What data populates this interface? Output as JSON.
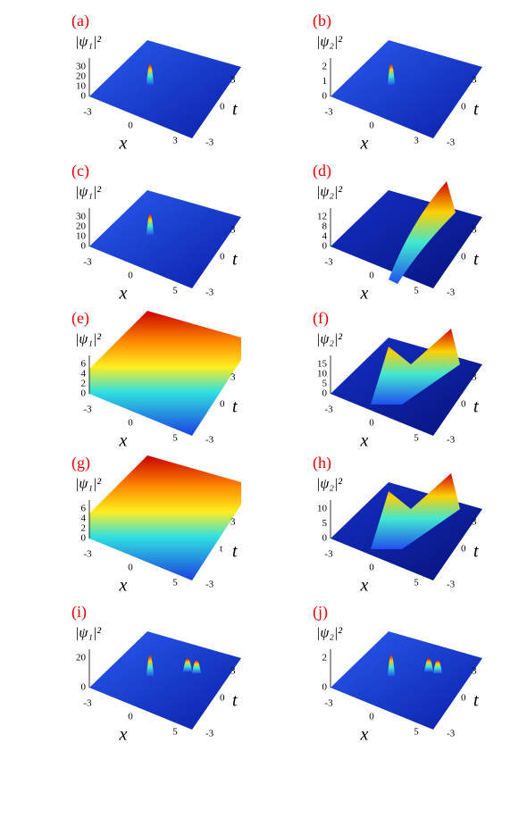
{
  "panels": [
    {
      "label": "(a)",
      "zlabel": "|ψ₁|²",
      "zticks": [
        "0",
        "10",
        "20",
        "30"
      ],
      "xticks": [
        "-3",
        "0",
        "3"
      ],
      "tticks": [
        "3",
        "0",
        "-3"
      ],
      "xlabel": "x",
      "tlabel": "t"
    },
    {
      "label": "(b)",
      "zlabel": "|ψ₂|²",
      "zticks": [
        "0",
        "1",
        "2"
      ],
      "xticks": [
        "-3",
        "0",
        "3"
      ],
      "tticks": [
        "3",
        "0",
        "-3"
      ],
      "xlabel": "x",
      "tlabel": "t"
    },
    {
      "label": "(c)",
      "zlabel": "|ψ₁|²",
      "zticks": [
        "0",
        "10",
        "20",
        "30"
      ],
      "xticks": [
        "-3",
        "0",
        "5"
      ],
      "tticks": [
        "3",
        "0",
        "-3"
      ],
      "xlabel": "x",
      "tlabel": "t"
    },
    {
      "label": "(d)",
      "zlabel": "|ψ₂|²",
      "zticks": [
        "0",
        "4",
        "8",
        "12"
      ],
      "xticks": [
        "-3",
        "0",
        "5"
      ],
      "tticks": [
        "3",
        "0",
        "-3"
      ],
      "xlabel": "x",
      "tlabel": "t"
    },
    {
      "label": "(e)",
      "zlabel": "|ψ₁|²",
      "zticks": [
        "0",
        "2",
        "4",
        "6"
      ],
      "xticks": [
        "-3",
        "0",
        "5"
      ],
      "tticks": [
        "3",
        "0",
        "-3"
      ],
      "xlabel": "x",
      "tlabel": "t"
    },
    {
      "label": "(f)",
      "zlabel": "|ψ₂|²",
      "zticks": [
        "0",
        "5",
        "10",
        "15"
      ],
      "xticks": [
        "-3",
        "0",
        "5"
      ],
      "tticks": [
        "3",
        "0",
        "-3"
      ],
      "xlabel": "x",
      "tlabel": "t"
    },
    {
      "label": "(g)",
      "zlabel": "|ψ₁|²",
      "zticks": [
        "0",
        "2",
        "4",
        "6"
      ],
      "xticks": [
        "-3",
        "0",
        "5"
      ],
      "tticks": [
        "3",
        "t",
        "-3"
      ],
      "xlabel": "x",
      "tlabel": "t"
    },
    {
      "label": "(h)",
      "zlabel": "|ψ₂|²",
      "zticks": [
        "0",
        "5",
        "10"
      ],
      "xticks": [
        "-3",
        "0",
        "5"
      ],
      "tticks": [
        "3",
        "0",
        "-3"
      ],
      "xlabel": "x",
      "tlabel": "t"
    },
    {
      "label": "(i)",
      "zlabel": "|ψ₁|²",
      "zticks": [
        "0",
        "20"
      ],
      "xticks": [
        "-3",
        "0",
        "5"
      ],
      "tticks": [
        "3",
        "0",
        "-3"
      ],
      "xlabel": "x",
      "tlabel": "t"
    },
    {
      "label": "(j)",
      "zlabel": "|ψ₂|²",
      "zticks": [
        "0",
        "2"
      ],
      "xticks": [
        "-3",
        "0",
        "5"
      ],
      "tticks": [
        "3",
        "0",
        "-3"
      ],
      "xlabel": "x",
      "tlabel": "t"
    }
  ]
}
